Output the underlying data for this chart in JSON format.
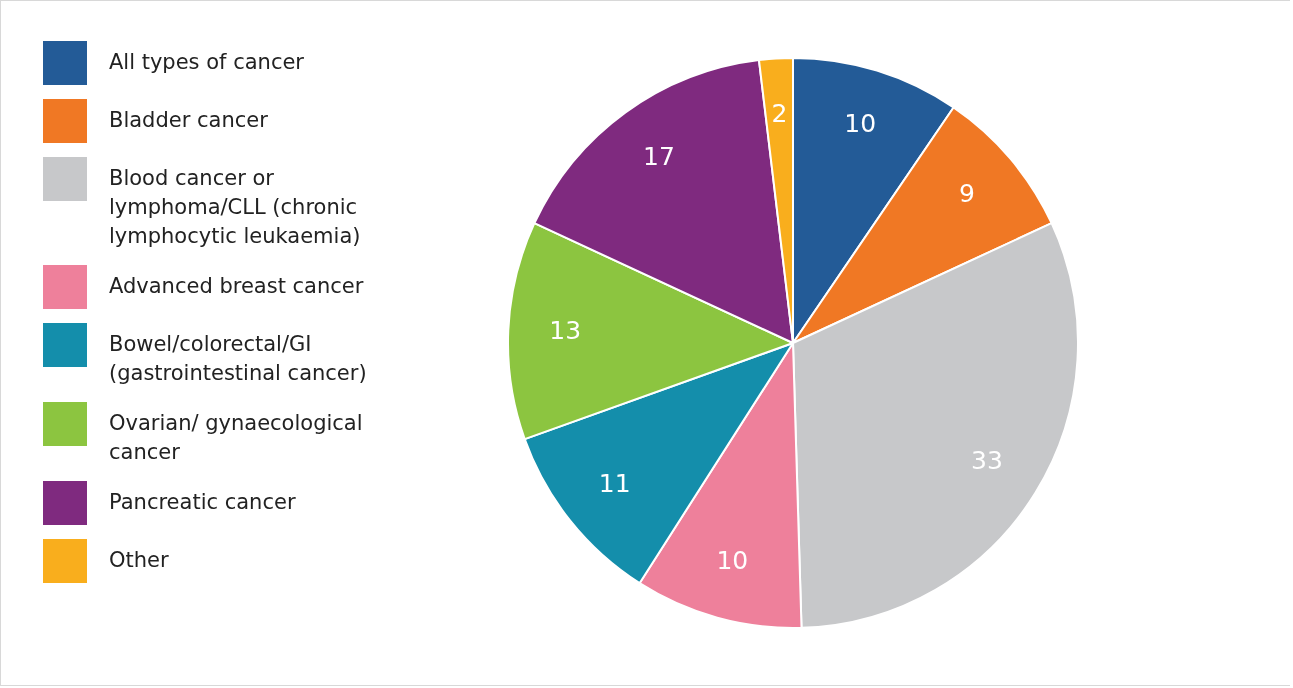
{
  "chart_data": {
    "type": "pie",
    "categories": [
      "All types of cancer",
      "Bladder cancer",
      "Blood cancer or lymphoma/CLL (chronic lymphocytic leukaemia)",
      "Advanced breast cancer",
      "Bowel/colorectal/GI (gastrointestinal cancer)",
      "Ovarian/ gynaecological cancer",
      "Pancreatic cancer",
      "Other"
    ],
    "values": [
      10,
      9,
      33,
      10,
      11,
      13,
      17,
      2
    ],
    "colors": [
      "#235b97",
      "#f07824",
      "#c7c8ca",
      "#ee809b",
      "#148eab",
      "#8cc540",
      "#7f2a7f",
      "#f9ae1d"
    ],
    "data_labels": true,
    "legend": "left"
  }
}
